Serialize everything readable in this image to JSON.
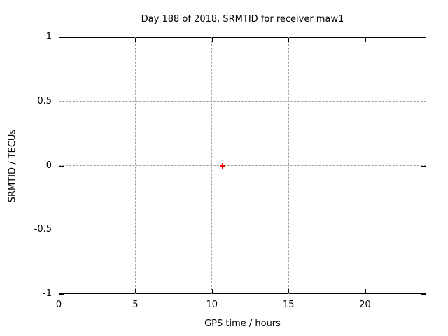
{
  "chart_data": {
    "type": "scatter",
    "title": "Day 188 of 2018, SRMTID for receiver maw1",
    "xlabel": "GPS time / hours",
    "ylabel": "SRMTID / TECUs",
    "xlim": [
      0,
      24
    ],
    "ylim": [
      -1,
      1
    ],
    "xticks": [
      {
        "value": 0,
        "label": "0"
      },
      {
        "value": 5,
        "label": "5"
      },
      {
        "value": 10,
        "label": "10"
      },
      {
        "value": 15,
        "label": "15"
      },
      {
        "value": 20,
        "label": "20"
      }
    ],
    "yticks": [
      {
        "value": -1,
        "label": "-1"
      },
      {
        "value": -0.5,
        "label": "-0.5"
      },
      {
        "value": 0,
        "label": "0"
      },
      {
        "value": 0.5,
        "label": "0.5"
      },
      {
        "value": 1,
        "label": "1"
      }
    ],
    "grid": true,
    "legend": "none",
    "series": [
      {
        "marker": "plus",
        "color": "#ff0000",
        "points": [
          {
            "x": 10.7,
            "y": 0.0
          }
        ]
      }
    ]
  },
  "colors": {
    "background": "#ffffff",
    "axis_border": "#000000",
    "grid": "#a0a0a0",
    "text": "#000000",
    "point": "#ff0000"
  }
}
